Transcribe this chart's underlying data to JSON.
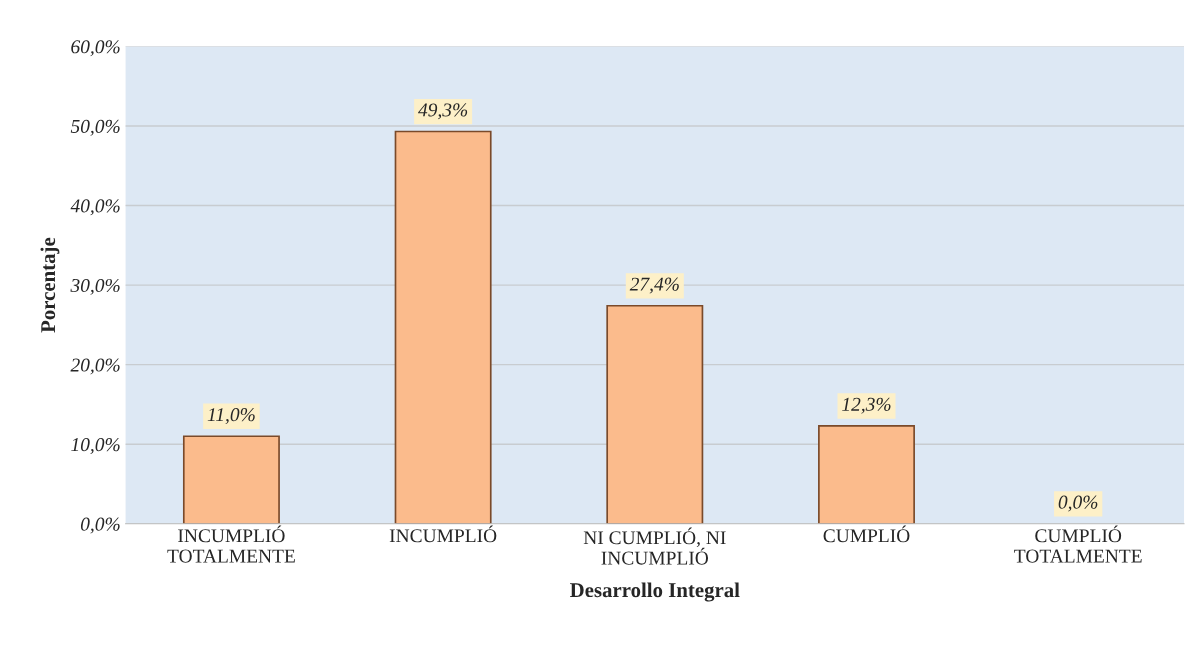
{
  "chart_data": {
    "type": "bar",
    "categories": [
      "INCUMPLIÓ\nTOTALMENTE",
      "INCUMPLIÓ",
      "NI CUMPLIÓ, NI\nINCUMPLIÓ",
      "CUMPLIÓ",
      "CUMPLIÓ\nTOTALMENTE"
    ],
    "values": [
      11.0,
      49.3,
      27.4,
      12.3,
      0.0
    ],
    "value_labels": [
      "11,0%",
      "49,3%",
      "27,4%",
      "12,3%",
      "0,0%"
    ],
    "color": "#fbbb8c",
    "xlabel": "Desarrollo Integral",
    "ylabel": "Porcentaje",
    "ylim": [
      0,
      60
    ],
    "yticks": [
      {
        "value": 0,
        "label": "0,0%"
      },
      {
        "value": 10,
        "label": "10,0%"
      },
      {
        "value": 20,
        "label": "20,0%"
      },
      {
        "value": 30,
        "label": "30,0%"
      },
      {
        "value": 40,
        "label": "40,0%"
      },
      {
        "value": 50,
        "label": "50,0%"
      },
      {
        "value": 60,
        "label": "60,0%"
      }
    ],
    "grid": "y",
    "legend": false
  }
}
